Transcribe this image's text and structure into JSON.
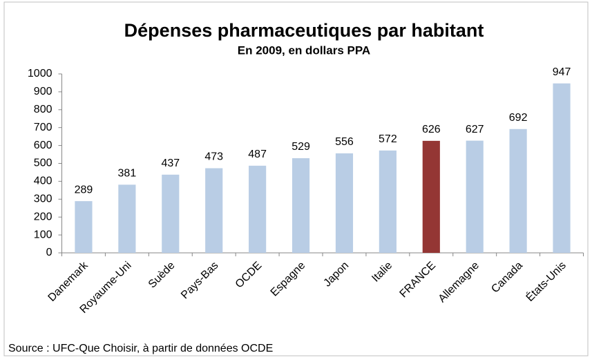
{
  "chart_data": {
    "type": "bar",
    "title": "Dépenses pharmaceutiques par habitant",
    "subtitle": "En 2009, en dollars PPA",
    "categories": [
      "Danemark",
      "Royaume-Uni",
      "Suède",
      "Pays-Bas",
      "OCDE",
      "Espagne",
      "Japon",
      "Italie",
      "FRANCE",
      "Allemagne",
      "Canada",
      "États-Unis"
    ],
    "values": [
      289,
      381,
      437,
      473,
      487,
      529,
      556,
      572,
      626,
      627,
      692,
      947
    ],
    "colors": [
      "#b9cde5",
      "#b9cde5",
      "#b9cde5",
      "#b9cde5",
      "#b9cde5",
      "#b9cde5",
      "#b9cde5",
      "#b9cde5",
      "#943634",
      "#b9cde5",
      "#b9cde5",
      "#b9cde5"
    ],
    "ylim": [
      0,
      1000
    ],
    "yticks": [
      0,
      100,
      200,
      300,
      400,
      500,
      600,
      700,
      800,
      900,
      1000
    ],
    "grid": false,
    "source": "Source : UFC-Que Choisir, à partir de données OCDE"
  }
}
